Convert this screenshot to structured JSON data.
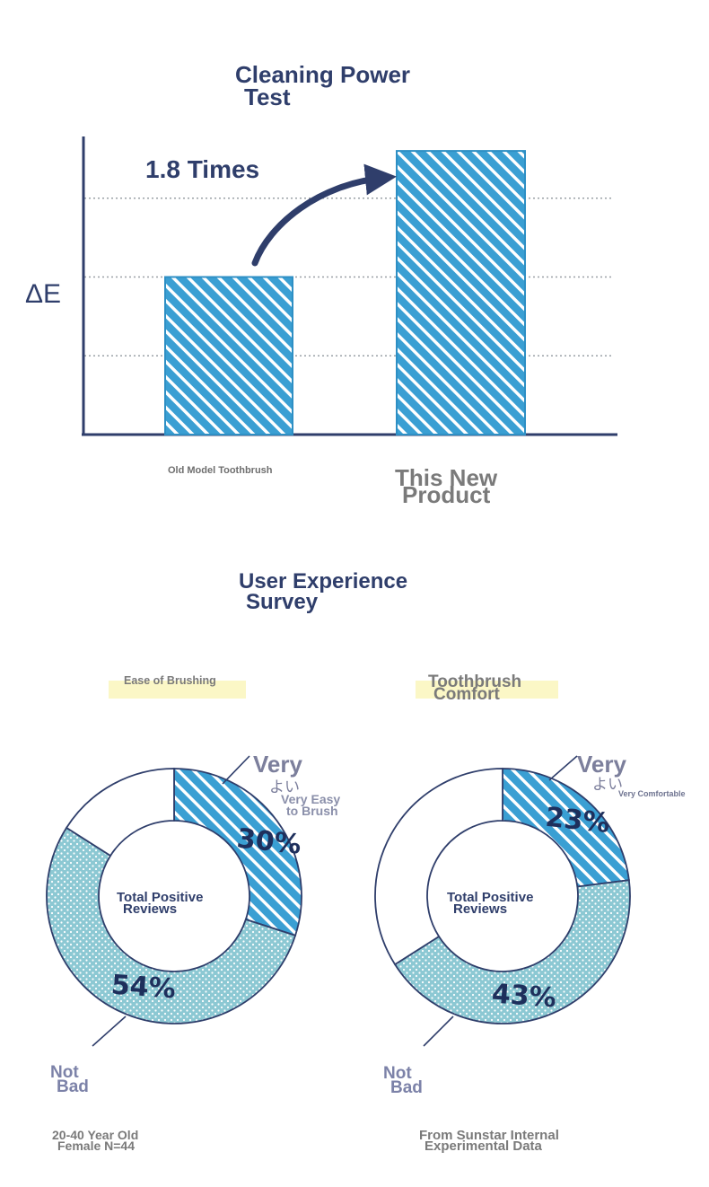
{
  "chart_data": [
    {
      "type": "bar",
      "title_line1": "Cleaning Power",
      "title_line2": "Test",
      "ylabel": "ΔE",
      "categories": [
        "Old Model Toothbrush",
        "This New Product"
      ],
      "category_lines": [
        [
          "Old Model Toothbrush"
        ],
        [
          "This New",
          "Product"
        ]
      ],
      "values": [
        1.0,
        1.8
      ],
      "ylim": [
        0,
        2.0
      ],
      "grid": true,
      "annotation": "1.8 Times",
      "bar_color": "#3a9fd3"
    },
    {
      "type": "pie",
      "section_title_line1": "User Experience",
      "section_title_line2": "Survey",
      "subtitle": "Ease of Brushing",
      "center_line1": "Total Positive",
      "center_line2": "Reviews",
      "slices": [
        {
          "name": "Very よい",
          "value": 30,
          "label": "30%",
          "color": "#3a9fd3"
        },
        {
          "name": "Not Bad",
          "value": 54,
          "label": "54%",
          "color": "#8cc8d3"
        },
        {
          "name": "",
          "value": 16,
          "label": "",
          "color": "#ffffff"
        }
      ],
      "very_label_1": "Very",
      "very_label_2": "よい",
      "very_sublabel_1": "Very Easy",
      "very_sublabel_2": "to Brush",
      "notbad_label_1": "Not",
      "notbad_label_2": "Bad",
      "footnote_1": "20-40 Year Old",
      "footnote_2": "Female N=44"
    },
    {
      "type": "pie",
      "subtitle_1": "Toothbrush",
      "subtitle_2": "Comfort",
      "center_line1": "Total Positive",
      "center_line2": "Reviews",
      "slices": [
        {
          "name": "Very よい",
          "value": 23,
          "label": "23%",
          "color": "#3a9fd3"
        },
        {
          "name": "Not Bad",
          "value": 43,
          "label": "43%",
          "color": "#8cc8d3"
        },
        {
          "name": "",
          "value": 34,
          "label": "",
          "color": "#ffffff"
        }
      ],
      "very_label_1": "Very",
      "very_label_2": "よい",
      "very_sublabel_1": "Very Comfortable",
      "notbad_label_1": "Not",
      "notbad_label_2": "Bad",
      "footnote_1": "From Sunstar Internal",
      "footnote_2": "Experimental Data"
    }
  ]
}
